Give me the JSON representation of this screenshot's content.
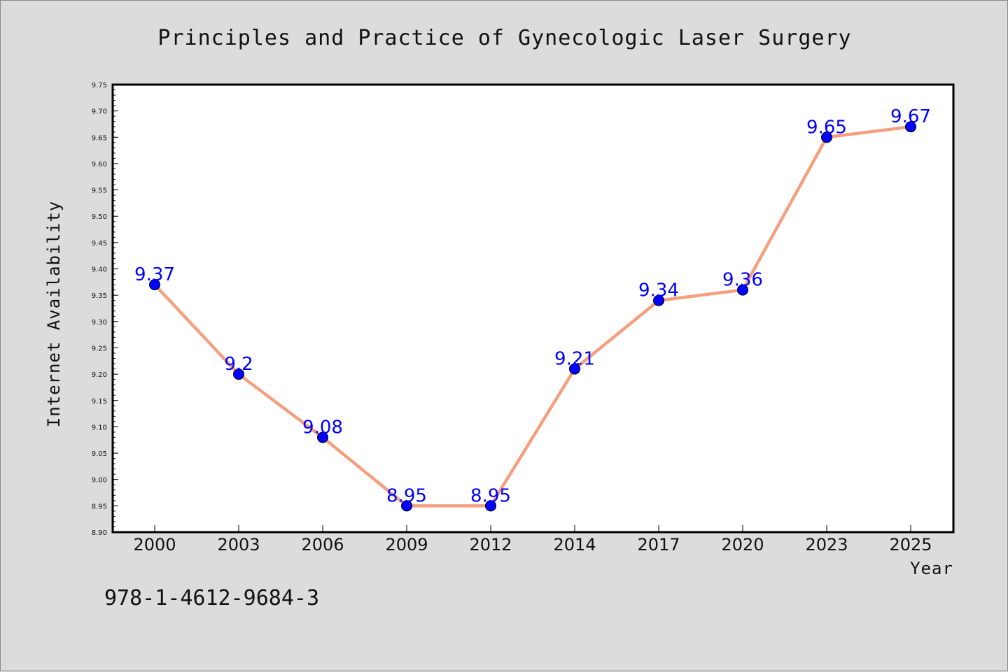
{
  "chart_data": {
    "type": "line",
    "title": "Principles and Practice of Gynecologic Laser Surgery",
    "xlabel": "Year",
    "ylabel": "Internet Availability",
    "categories": [
      "2000",
      "2003",
      "2006",
      "2009",
      "2012",
      "2014",
      "2017",
      "2020",
      "2023",
      "2025"
    ],
    "values": [
      9.37,
      9.2,
      9.08,
      8.95,
      8.95,
      9.21,
      9.34,
      9.36,
      9.65,
      9.67
    ],
    "data_labels": [
      "9.37",
      "9.2",
      "9.08",
      "8.95",
      "8.95",
      "9.21",
      "9.34",
      "9.36",
      "9.65",
      "9.67"
    ],
    "ylim": [
      8.9,
      9.75
    ],
    "yticks": [
      "8.90",
      "8.95",
      "9.00",
      "9.05",
      "9.10",
      "9.15",
      "9.20",
      "9.25",
      "9.30",
      "9.35",
      "9.40",
      "9.45",
      "9.50",
      "9.55",
      "9.60",
      "9.65",
      "9.70",
      "9.75"
    ],
    "grid": false,
    "line_color": "#f4a07f",
    "marker_color": "#0000ff",
    "label_color": "#0000ff"
  },
  "annotation": "978-1-4612-9684-3"
}
